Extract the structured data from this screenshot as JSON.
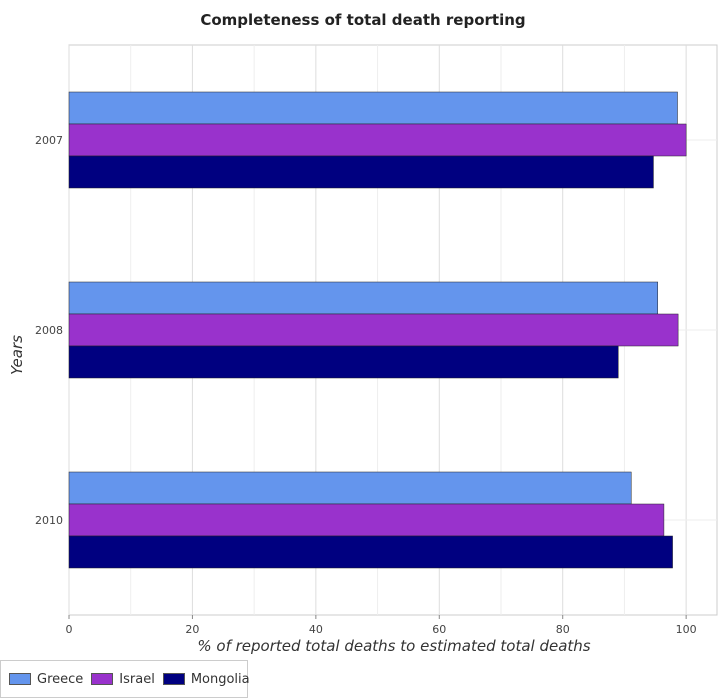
{
  "chart_data": {
    "type": "bar",
    "orientation": "horizontal",
    "title": "Completeness of total death reporting",
    "xlabel": "% of reported total deaths to estimated total deaths",
    "ylabel": "Years",
    "categories": [
      "2007",
      "2008",
      "2010"
    ],
    "xlim": [
      0,
      105
    ],
    "xticks": [
      "0",
      "20",
      "40",
      "60",
      "80",
      "100"
    ],
    "grid": true,
    "legend_position": "bottom-left",
    "series": [
      {
        "name": "Greece",
        "color": "#6495ED",
        "values": [
          98.6,
          95.4,
          91.1
        ]
      },
      {
        "name": "Israel",
        "color": "#9932CC",
        "values": [
          100.0,
          98.7,
          96.4
        ]
      },
      {
        "name": "Mongolia",
        "color": "#000080",
        "values": [
          94.7,
          89.0,
          97.8
        ]
      }
    ]
  }
}
